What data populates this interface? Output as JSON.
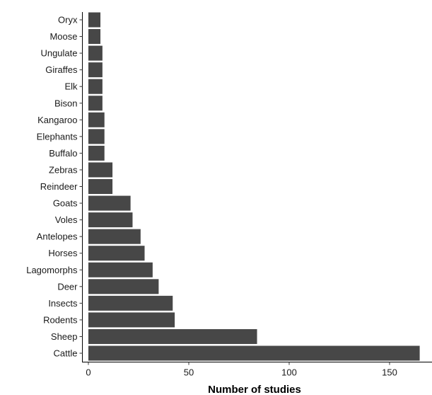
{
  "chart_data": {
    "type": "bar",
    "orientation": "horizontal",
    "categories": [
      "Oryx",
      "Moose",
      "Ungulate",
      "Giraffes",
      "Elk",
      "Bison",
      "Kangaroo",
      "Elephants",
      "Buffalo",
      "Zebras",
      "Reindeer",
      "Goats",
      "Voles",
      "Antelopes",
      "Horses",
      "Lagomorphs",
      "Deer",
      "Insects",
      "Rodents",
      "Sheep",
      "Cattle"
    ],
    "values": [
      6,
      6,
      7,
      7,
      7,
      7,
      8,
      8,
      8,
      12,
      12,
      21,
      22,
      26,
      28,
      32,
      35,
      42,
      43,
      84,
      165
    ],
    "xlabel": "Number of studies",
    "ylabel": "",
    "xlim": [
      0,
      165
    ],
    "xticks": [
      0,
      50,
      100,
      150
    ],
    "bar_color": "#474747",
    "grid": false,
    "legend": "none"
  }
}
